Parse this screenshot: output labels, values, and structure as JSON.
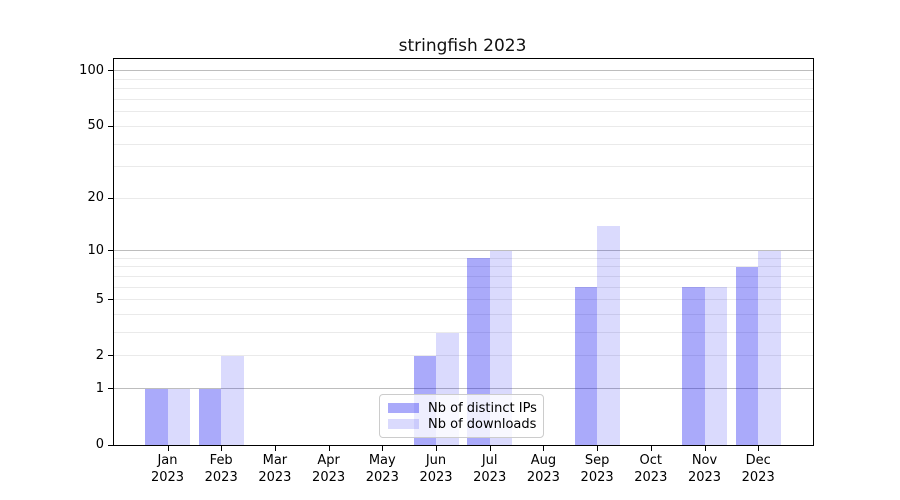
{
  "chart_data": {
    "type": "bar",
    "title": "stringfish 2023",
    "categories": [
      "Jan\n2023",
      "Feb\n2023",
      "Mar\n2023",
      "Apr\n2023",
      "May\n2023",
      "Jun\n2023",
      "Jul\n2023",
      "Aug\n2023",
      "Sep\n2023",
      "Oct\n2023",
      "Nov\n2023",
      "Dec\n2023"
    ],
    "series": [
      {
        "name": "Nb of distinct IPs",
        "color": "rgba(0,0,240,0.335)",
        "values": [
          1,
          1,
          0,
          0,
          0,
          2,
          9,
          0,
          6,
          0,
          6,
          8
        ]
      },
      {
        "name": "Nb of downloads",
        "color": "rgba(0,0,240,0.145)",
        "values": [
          1,
          2,
          0,
          0,
          0,
          3,
          10,
          0,
          14,
          0,
          6,
          10
        ]
      }
    ],
    "xlabel": "",
    "ylabel": "",
    "yscale": "log1p",
    "ylim": [
      0,
      116
    ],
    "yticks": [
      0,
      1,
      2,
      5,
      10,
      20,
      50,
      100
    ],
    "grid": {
      "major": [
        1,
        10,
        100
      ],
      "minor": [
        2,
        3,
        4,
        5,
        6,
        7,
        8,
        9,
        20,
        30,
        40,
        50,
        60,
        70,
        80,
        90
      ]
    },
    "legend_position": "lower center",
    "colors": {
      "bar_distinct_ips_rendered": "#aaaaf6",
      "bar_downloads_rendered": "#dadafb",
      "gridline_major": "#bdbdbd",
      "gridline_minor": "#eaeaea",
      "axis": "#000000",
      "background": "#ffffff"
    }
  }
}
